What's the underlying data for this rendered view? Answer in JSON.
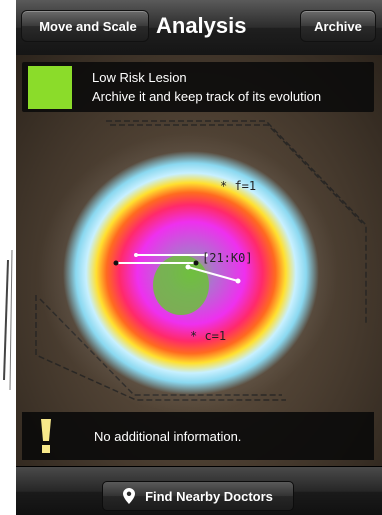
{
  "navbar": {
    "back_label": "Move and Scale",
    "title": "Analysis",
    "archive_label": "Archive"
  },
  "risk": {
    "title": "Low Risk Lesion",
    "description": "Archive it and keep track of its evolution",
    "color": "#8bdc2a"
  },
  "overlay": {
    "top_marker": "* f=1",
    "center_label": "[21:K0]",
    "bottom_marker": "* c=1"
  },
  "info": {
    "icon": "exclamation-icon",
    "text": "No additional information."
  },
  "toolbar": {
    "icon": "location-pin-icon",
    "find_label": "Find Nearby Doctors"
  }
}
